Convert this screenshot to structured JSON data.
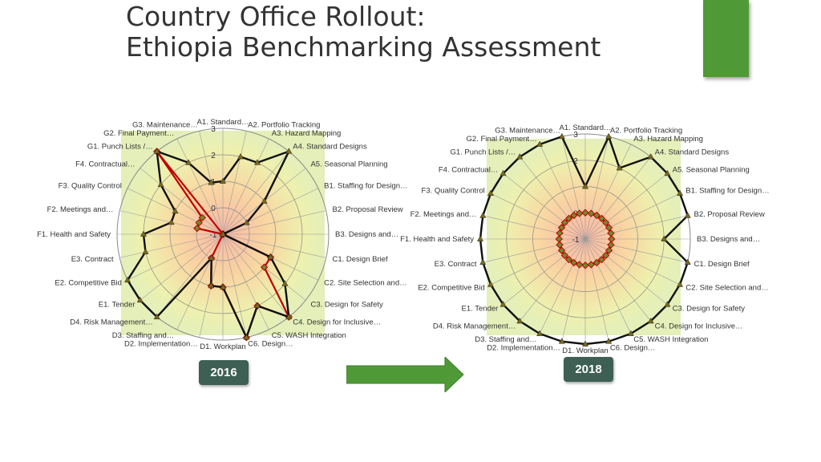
{
  "title": {
    "line1": "Country Office Rollout:",
    "line2": "Ethiopia Benchmarking Assessment"
  },
  "badges": {
    "left": "2016",
    "right": "2018"
  },
  "colors": {
    "accent_green": "#4f9a36",
    "badge": "#3d5f54",
    "series_main": "#111111",
    "series_baseline": "#c00000",
    "marker": "#7a6a1a"
  },
  "chart_data": [
    {
      "type": "radar",
      "title": "2016",
      "categories": [
        "A1. Standard…",
        "A2. Portfolio Tracking",
        "A3. Hazard Mapping",
        "A4. Standard Designs",
        "A5. Seasonal Planning",
        "B1. Staffing for Design…",
        "B2. Proposal Review",
        "B3. Designs and…",
        "C1. Design Brief",
        "C2. Site Selection and…",
        "C3. Design for Safety",
        "C4. Design for Inclusive…",
        "C5. WASH Integration",
        "C6. Design…",
        "D1. Workplan",
        "D2. Implementation…",
        "D3. Staffing and…",
        "D4. Risk Management…",
        "E1. Tender",
        "E2. Competitive Bid",
        "E3. Contract",
        "F1. Health and Safety",
        "F2. Meetings and…",
        "F3. Quality Control",
        "F4. Contractual…",
        "G1. Punch Lists /…",
        "G2. Final Payment…",
        "G3. Maintenance…"
      ],
      "tick_labels": [
        "-1",
        "0",
        "1",
        "2",
        "3"
      ],
      "rlim": [
        -1,
        3
      ],
      "series": [
        {
          "values": [
            1,
            2,
            2,
            3,
            1,
            0,
            -1,
            -1,
            -1,
            1,
            2,
            3,
            2,
            3,
            1,
            1,
            0,
            3,
            3,
            3,
            2,
            2,
            1,
            1,
            2,
            3,
            2,
            1
          ]
        },
        {
          "values": [
            -1,
            -1,
            -1,
            -1,
            -1,
            -1,
            -1,
            -1,
            -1,
            1,
            1,
            3,
            2,
            3,
            1,
            1,
            0,
            -1,
            -1,
            -1,
            -1,
            -1,
            0,
            0,
            0,
            3,
            -1,
            -1
          ]
        }
      ]
    },
    {
      "type": "radar",
      "title": "2018",
      "categories": [
        "A1. Standard…",
        "A2. Portfolio Tracking",
        "A3. Hazard Mapping",
        "A4. Standard Designs",
        "A5. Seasonal Planning",
        "B1. Staffing for Design…",
        "B2. Proposal Review",
        "B3. Designs and…",
        "C1. Design Brief",
        "C2. Site Selection and…",
        "C3. Design for Safety",
        "C4. Design for Inclusive…",
        "C5. WASH Integration",
        "C6. Design…",
        "D1. Workplan",
        "D2. Implementation…",
        "D3. Staffing and…",
        "D4. Risk Management…",
        "E1. Tender",
        "E2. Competitive Bid",
        "E3. Contract",
        "F1. Health and Safety",
        "F2. Meetings and…",
        "F3. Quality Control",
        "F4. Contractual…",
        "G1. Punch Lists /…",
        "G2. Final Payment…",
        "G3. Maintenance…"
      ],
      "tick_labels": [
        "-1",
        "0",
        "2",
        "3"
      ],
      "rlim": [
        -1,
        3
      ],
      "series": [
        {
          "values": [
            1,
            3,
            2,
            3,
            3,
            3,
            3,
            2,
            3,
            3,
            3,
            3,
            3,
            3,
            3,
            3,
            3,
            3,
            3,
            3,
            3,
            3,
            3,
            3,
            3,
            3,
            3,
            3
          ]
        },
        {
          "values": [
            0,
            0,
            0,
            0,
            0,
            0,
            0,
            0,
            0,
            0,
            0,
            0,
            0,
            0,
            0,
            0,
            0,
            0,
            0,
            0,
            0,
            0,
            0,
            0,
            0,
            0,
            0,
            0
          ]
        }
      ]
    }
  ]
}
